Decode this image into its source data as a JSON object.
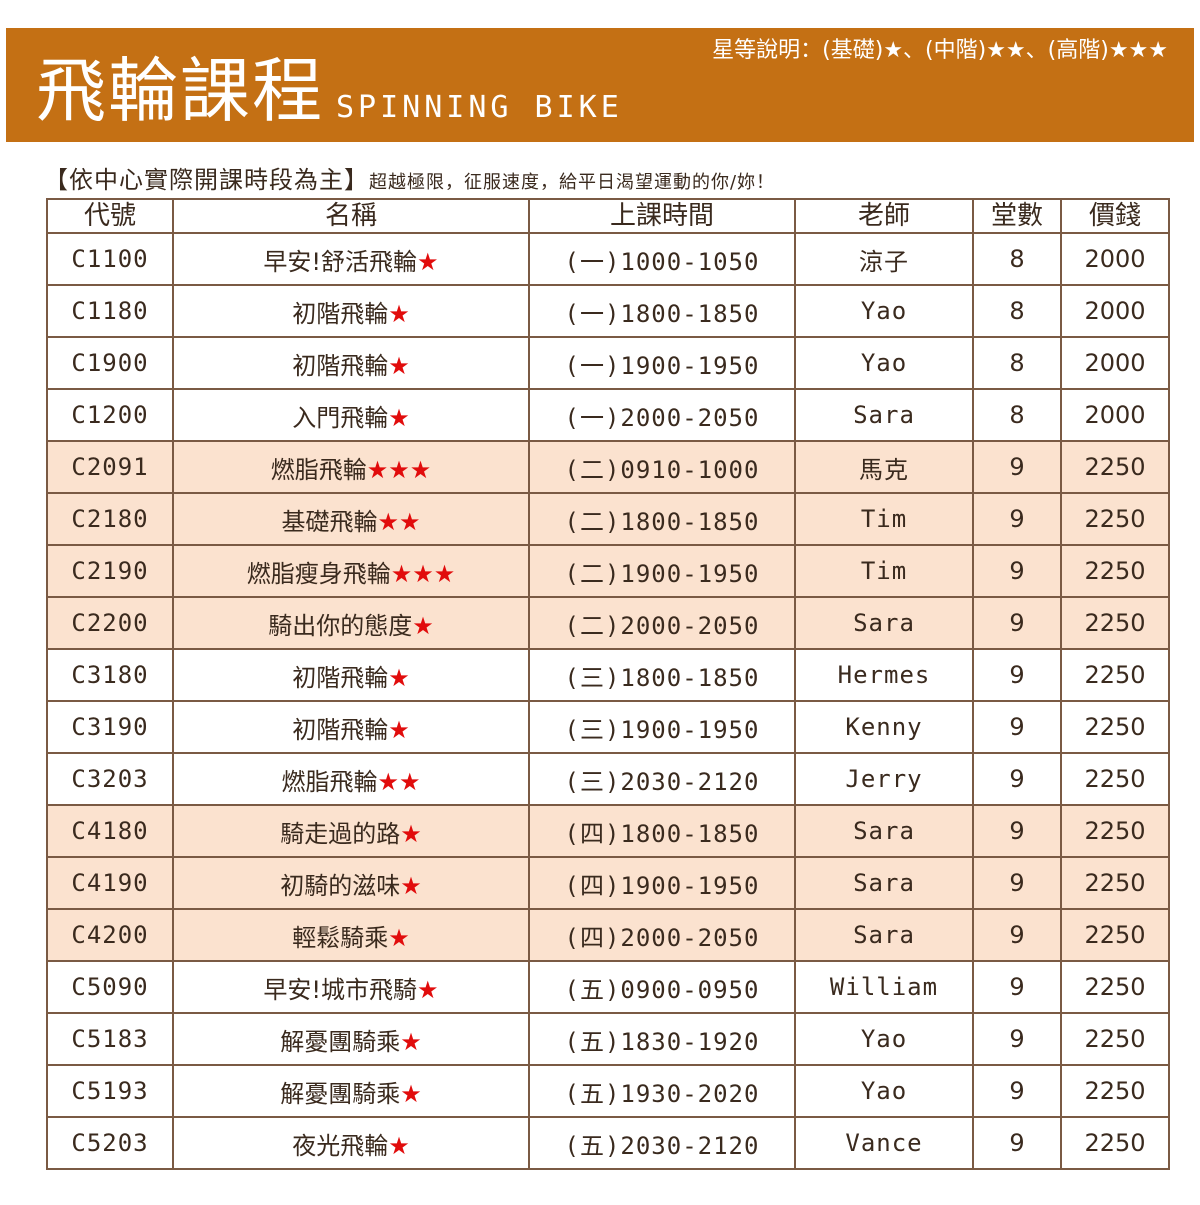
{
  "banner": {
    "title": "飛輪課程",
    "subtitle": "SPINNING BIKE",
    "legend": "星等說明：(基礎)★、(中階)★★、(高階)★★★"
  },
  "note": {
    "main": "【依中心實際開課時段為主】",
    "sub": "超越極限，征服速度，給平日渴望運動的你/妳！"
  },
  "table": {
    "headers": [
      "代號",
      "名稱",
      "上課時間",
      "老師",
      "堂數",
      "價錢"
    ],
    "rows": [
      {
        "code": "C1100",
        "name": "早安!舒活飛輪",
        "stars": "★",
        "time": "(一)1000-1050",
        "teacher": "涼子",
        "sessions": "8",
        "price": "2000",
        "hl": false
      },
      {
        "code": "C1180",
        "name": "初階飛輪",
        "stars": "★",
        "time": "(一)1800-1850",
        "teacher": "Yao",
        "sessions": "8",
        "price": "2000",
        "hl": false
      },
      {
        "code": "C1900",
        "name": "初階飛輪",
        "stars": "★",
        "time": "(一)1900-1950",
        "teacher": "Yao",
        "sessions": "8",
        "price": "2000",
        "hl": false
      },
      {
        "code": "C1200",
        "name": "入門飛輪",
        "stars": "★",
        "time": "(一)2000-2050",
        "teacher": "Sara",
        "sessions": "8",
        "price": "2000",
        "hl": false
      },
      {
        "code": "C2091",
        "name": "燃脂飛輪",
        "stars": "★★★",
        "time": "(二)0910-1000",
        "teacher": "馬克",
        "sessions": "9",
        "price": "2250",
        "hl": true
      },
      {
        "code": "C2180",
        "name": "基礎飛輪",
        "stars": "★★",
        "time": "(二)1800-1850",
        "teacher": "Tim",
        "sessions": "9",
        "price": "2250",
        "hl": true
      },
      {
        "code": "C2190",
        "name": "燃脂瘦身飛輪",
        "stars": "★★★",
        "time": "(二)1900-1950",
        "teacher": "Tim",
        "sessions": "9",
        "price": "2250",
        "hl": true
      },
      {
        "code": "C2200",
        "name": "騎出你的態度",
        "stars": "★",
        "time": "(二)2000-2050",
        "teacher": "Sara",
        "sessions": "9",
        "price": "2250",
        "hl": true
      },
      {
        "code": "C3180",
        "name": "初階飛輪",
        "stars": "★",
        "time": "(三)1800-1850",
        "teacher": "Hermes",
        "sessions": "9",
        "price": "2250",
        "hl": false
      },
      {
        "code": "C3190",
        "name": "初階飛輪",
        "stars": "★",
        "time": "(三)1900-1950",
        "teacher": "Kenny",
        "sessions": "9",
        "price": "2250",
        "hl": false
      },
      {
        "code": "C3203",
        "name": "燃脂飛輪",
        "stars": "★★",
        "time": "(三)2030-2120",
        "teacher": "Jerry",
        "sessions": "9",
        "price": "2250",
        "hl": false
      },
      {
        "code": "C4180",
        "name": "騎走過的路",
        "stars": "★",
        "time": "(四)1800-1850",
        "teacher": "Sara",
        "sessions": "9",
        "price": "2250",
        "hl": true
      },
      {
        "code": "C4190",
        "name": "初騎的滋味",
        "stars": "★",
        "time": "(四)1900-1950",
        "teacher": "Sara",
        "sessions": "9",
        "price": "2250",
        "hl": true
      },
      {
        "code": "C4200",
        "name": "輕鬆騎乘",
        "stars": "★",
        "time": "(四)2000-2050",
        "teacher": "Sara",
        "sessions": "9",
        "price": "2250",
        "hl": true
      },
      {
        "code": "C5090",
        "name": "早安!城市飛騎",
        "stars": "★",
        "time": "(五)0900-0950",
        "teacher": "William",
        "sessions": "9",
        "price": "2250",
        "hl": false
      },
      {
        "code": "C5183",
        "name": "解憂團騎乘",
        "stars": "★",
        "time": "(五)1830-1920",
        "teacher": "Yao",
        "sessions": "9",
        "price": "2250",
        "hl": false
      },
      {
        "code": "C5193",
        "name": "解憂團騎乘",
        "stars": "★",
        "time": "(五)1930-2020",
        "teacher": "Yao",
        "sessions": "9",
        "price": "2250",
        "hl": false
      },
      {
        "code": "C5203",
        "name": "夜光飛輪",
        "stars": "★",
        "time": "(五)2030-2120",
        "teacher": "Vance",
        "sessions": "9",
        "price": "2250",
        "hl": false
      }
    ]
  }
}
